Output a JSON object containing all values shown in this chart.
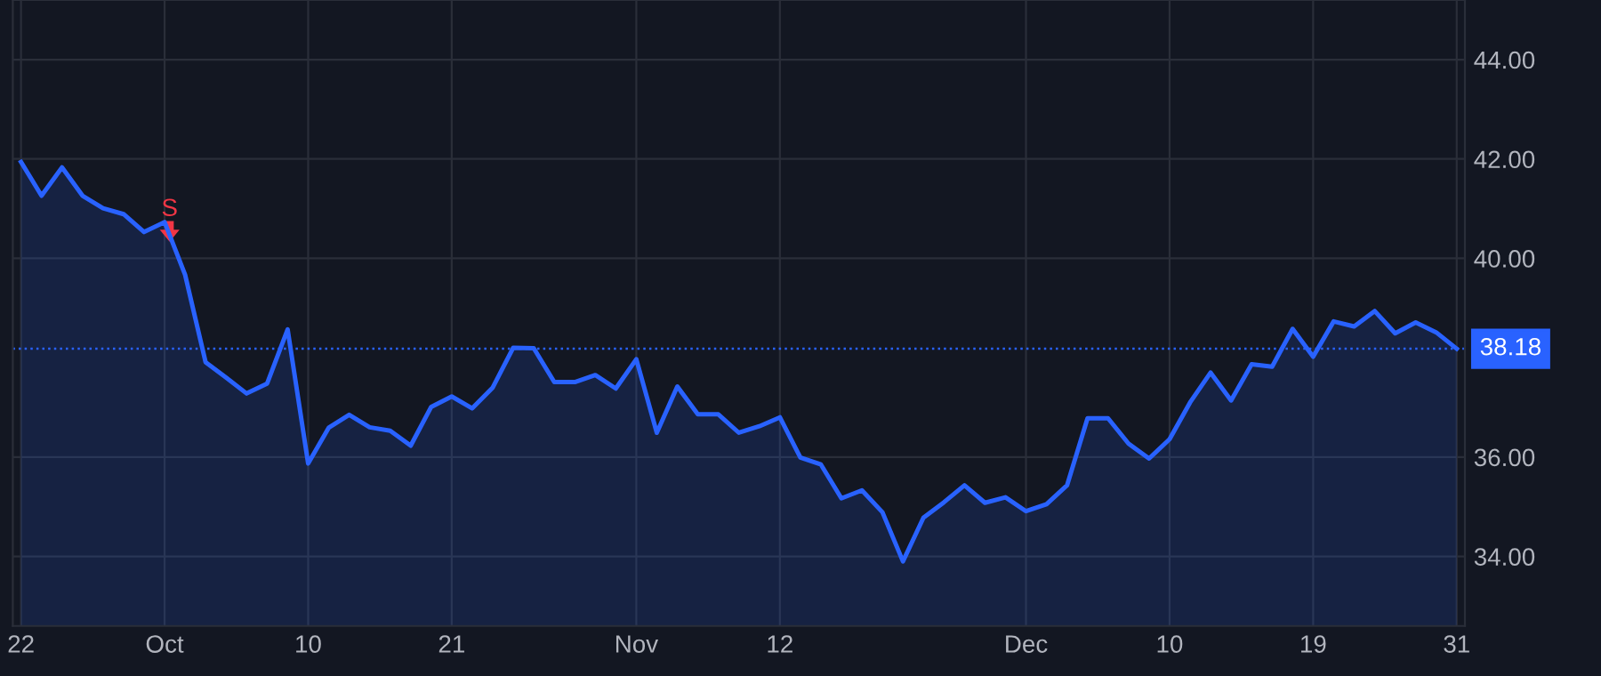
{
  "chart_data": {
    "type": "area",
    "categories": [
      "22",
      null,
      null,
      null,
      null,
      null,
      null,
      "Oct",
      null,
      null,
      null,
      null,
      null,
      null,
      "10",
      null,
      null,
      null,
      null,
      null,
      null,
      "21",
      null,
      null,
      null,
      null,
      null,
      null,
      null,
      null,
      "Nov",
      null,
      null,
      null,
      null,
      null,
      null,
      "12",
      null,
      null,
      null,
      null,
      null,
      null,
      null,
      null,
      null,
      null,
      null,
      "Dec",
      null,
      null,
      null,
      null,
      null,
      null,
      "10",
      null,
      null,
      null,
      null,
      null,
      null,
      "19",
      null,
      null,
      null,
      null,
      null,
      null,
      "31"
    ],
    "series": [
      {
        "color": "#2962ff",
        "values": [
          41.94,
          41.26,
          41.83,
          41.26,
          41.01,
          40.89,
          40.53,
          40.73,
          39.67,
          37.91,
          37.6,
          37.28,
          37.48,
          38.57,
          35.87,
          36.59,
          36.85,
          36.6,
          36.53,
          36.23,
          37.01,
          37.22,
          36.98,
          37.4,
          38.2,
          38.19,
          37.51,
          37.51,
          37.65,
          37.38,
          37.97,
          36.49,
          37.42,
          36.86,
          36.86,
          36.49,
          36.62,
          36.8,
          35.99,
          35.85,
          35.17,
          35.33,
          34.89,
          33.9,
          34.78,
          35.09,
          35.43,
          35.08,
          35.19,
          34.91,
          35.05,
          35.43,
          36.78,
          36.78,
          36.27,
          35.97,
          36.36,
          37.1,
          37.7,
          37.14,
          37.87,
          37.82,
          38.58,
          38.02,
          38.73,
          38.63,
          38.94,
          38.49,
          38.71,
          38.51,
          38.18
        ]
      }
    ],
    "ylim": [
      32.6,
      45.2
    ],
    "yticks": [
      {
        "value": 34,
        "label": "34.00"
      },
      {
        "value": 36,
        "label": "36.00"
      },
      {
        "value": 40,
        "label": "40.00"
      },
      {
        "value": 42,
        "label": "42.00"
      },
      {
        "value": 44,
        "label": "44.00"
      }
    ],
    "grid": true,
    "line_style": "solid",
    "ref_lines": [
      {
        "axis": "y",
        "value": 38.18,
        "label": "38.18",
        "color": "#2962ff",
        "line_style": "dotted"
      }
    ],
    "annotations": [
      "S"
    ]
  }
}
